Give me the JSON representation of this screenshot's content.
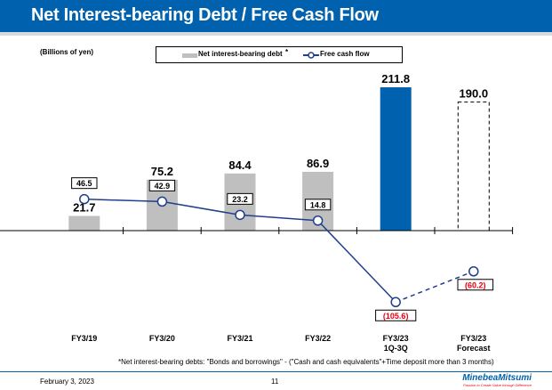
{
  "title": "Net Interest-bearing Debt / Free Cash Flow",
  "unit": "(Billions of yen)",
  "legend": {
    "debt": "Net interest-bearing debt",
    "asterisk": "*",
    "fcf": "Free cash flow"
  },
  "note": "*Net interest-bearing debts: \"Bonds and borrowings\" - (\"Cash and cash equivalents\"+Time deposit more than 3 months)",
  "footer": {
    "date": "February 3, 2023",
    "page": "11",
    "logo": "MinebeaMitsumi",
    "tagline": "Passion to Create Value through Difference"
  },
  "colors": {
    "title_bar": "#0062ae",
    "debt_bar": "#bfbfbf",
    "debt_highlight": "#0062ae",
    "fcf_line": "#1f3f8c",
    "negative_label": "#e60012"
  },
  "chart_data": {
    "type": "bar+line",
    "categories": [
      "FY3/19",
      "FY3/20",
      "FY3/21",
      "FY3/22",
      "FY3/23\n1Q-3Q",
      "FY3/23\nForecast"
    ],
    "series": [
      {
        "name": "Net interest-bearing debt",
        "type": "bar",
        "values": [
          21.7,
          75.2,
          84.4,
          86.9,
          211.8,
          190.0
        ],
        "labels": [
          "21.7",
          "75.2",
          "84.4",
          "86.9",
          "211.8",
          "190.0"
        ],
        "styles": [
          "gray",
          "gray",
          "gray",
          "gray",
          "blue",
          "dashed-outline"
        ]
      },
      {
        "name": "Free cash flow",
        "type": "line",
        "values": [
          46.5,
          42.9,
          23.2,
          14.8,
          -105.6,
          -60.2
        ],
        "labels": [
          "46.5",
          "42.9",
          "23.2",
          "14.8",
          "(105.6)",
          "(60.2)"
        ],
        "dashed_last_segment": true
      }
    ],
    "ylim": [
      -140,
      235
    ]
  }
}
